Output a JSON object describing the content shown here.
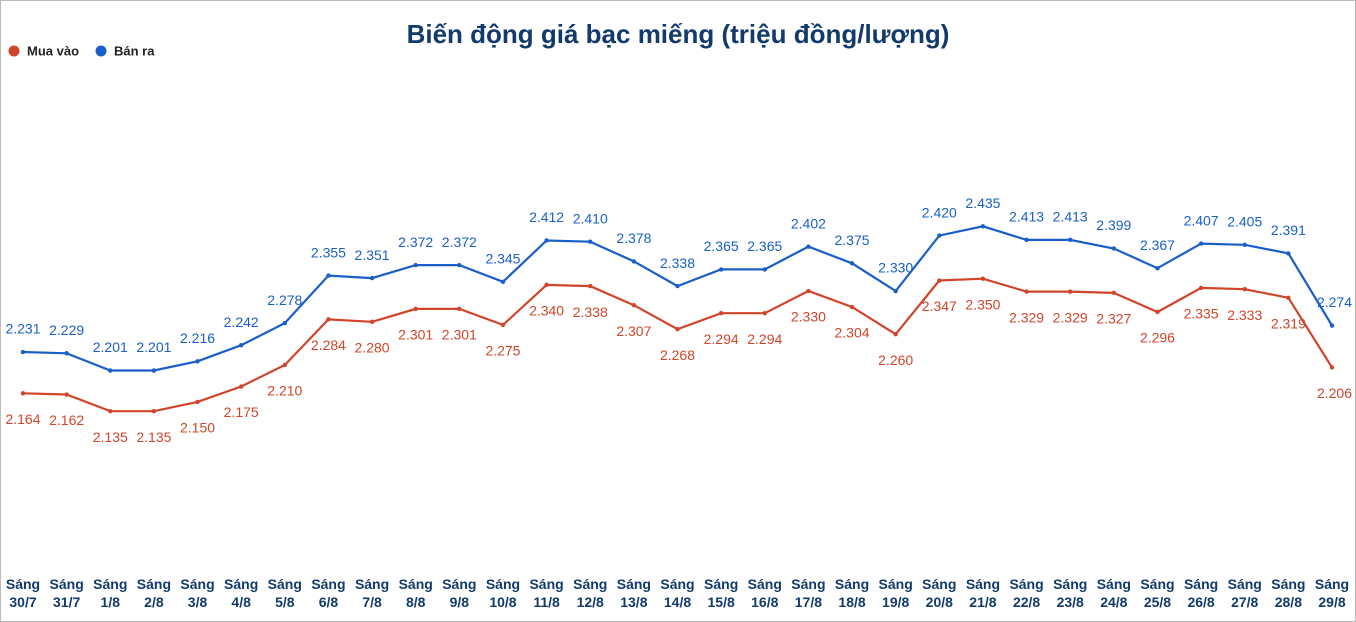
{
  "chart_data": {
    "type": "line",
    "title": "Biến động giá bạc miếng (triệu đồng/lượng)",
    "categories": [
      "Sáng 30/7",
      "Sáng 31/7",
      "Sáng 1/8",
      "Sáng 2/8",
      "Sáng 3/8",
      "Sáng 4/8",
      "Sáng 5/8",
      "Sáng 6/8",
      "Sáng 7/8",
      "Sáng 8/8",
      "Sáng 9/8",
      "Sáng 10/8",
      "Sáng 11/8",
      "Sáng 12/8",
      "Sáng 13/8",
      "Sáng 14/8",
      "Sáng 15/8",
      "Sáng 16/8",
      "Sáng 17/8",
      "Sáng 18/8",
      "Sáng 19/8",
      "Sáng 20/8",
      "Sáng 21/8",
      "Sáng 22/8",
      "Sáng 23/8",
      "Sáng 24/8",
      "Sáng 25/8",
      "Sáng 26/8",
      "Sáng 27/8",
      "Sáng 28/8",
      "Sáng 29/8"
    ],
    "series": [
      {
        "name": "Mua vào",
        "color": "#d0452a",
        "values": [
          2.164,
          2.162,
          2.135,
          2.135,
          2.15,
          2.175,
          2.21,
          2.284,
          2.28,
          2.301,
          2.301,
          2.275,
          2.34,
          2.338,
          2.307,
          2.268,
          2.294,
          2.294,
          2.33,
          2.304,
          2.26,
          2.347,
          2.35,
          2.329,
          2.329,
          2.327,
          2.296,
          2.335,
          2.333,
          2.319,
          2.206
        ],
        "value_labels": [
          "2.164",
          "2.162",
          "2.135",
          "2.135",
          "2.150",
          "2.175",
          "2.210",
          "2.284",
          "2.280",
          "2.301",
          "2.301",
          "2.275",
          "2.340",
          "2.338",
          "2.307",
          "2.268",
          "2.294",
          "2.294",
          "2.330",
          "2.304",
          "2.260",
          "2.347",
          "2.350",
          "2.329",
          "2.329",
          "2.327",
          "2.296",
          "2.335",
          "2.333",
          "2.319",
          "2.206"
        ]
      },
      {
        "name": "Bán ra",
        "color": "#1a5fc8",
        "values": [
          2.231,
          2.229,
          2.201,
          2.201,
          2.216,
          2.242,
          2.278,
          2.355,
          2.351,
          2.372,
          2.372,
          2.345,
          2.412,
          2.41,
          2.378,
          2.338,
          2.365,
          2.365,
          2.402,
          2.375,
          2.33,
          2.42,
          2.435,
          2.413,
          2.413,
          2.399,
          2.367,
          2.407,
          2.405,
          2.391,
          2.274
        ],
        "value_labels": [
          "2.231",
          "2.229",
          "2.201",
          "2.201",
          "2.216",
          "2.242",
          "2.278",
          "2.355",
          "2.351",
          "2.372",
          "2.372",
          "2.345",
          "2.412",
          "2.410",
          "2.378",
          "2.338",
          "2.365",
          "2.365",
          "2.402",
          "2.375",
          "2.330",
          "2.420",
          "2.435",
          "2.413",
          "2.413",
          "2.399",
          "2.367",
          "2.407",
          "2.405",
          "2.391",
          "2.274"
        ]
      }
    ],
    "ylim": [
      1.9,
      2.7
    ],
    "legend": "top-left"
  }
}
